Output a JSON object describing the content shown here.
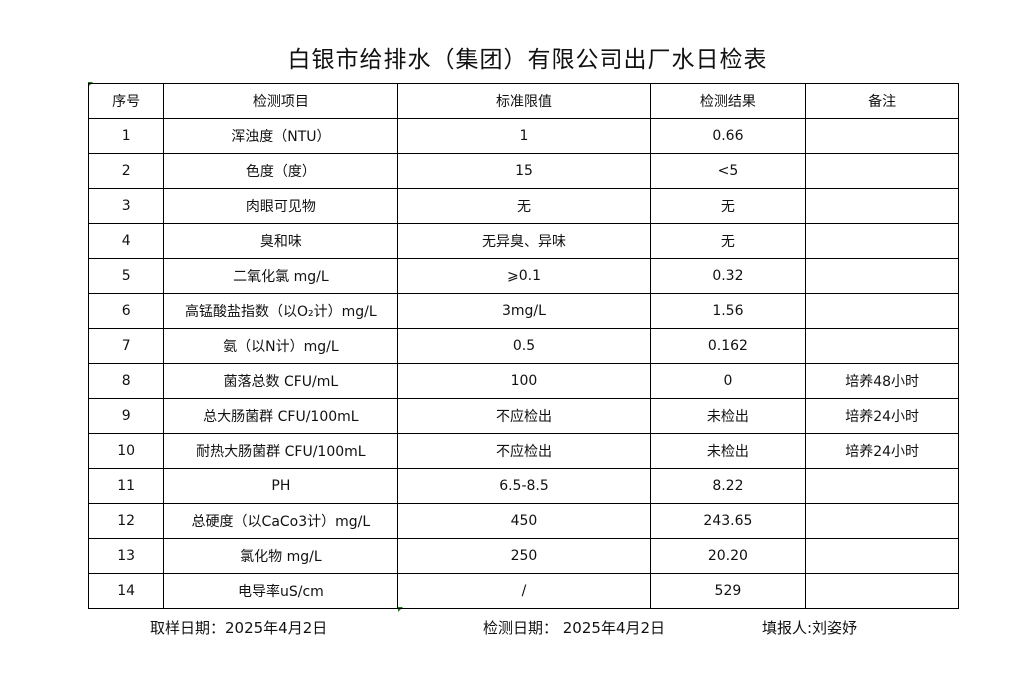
{
  "title": "白银市给排水（集团）有限公司出厂水日检表",
  "headers": [
    "序号",
    "检测项目",
    "标准限值",
    "检测结果",
    "备注"
  ],
  "rows": [
    [
      "1",
      "浑浊度（NTU）",
      "1",
      "0.66",
      ""
    ],
    [
      "2",
      "色度（度）",
      "15",
      "<5",
      ""
    ],
    [
      "3",
      "肉眼可见物",
      "无",
      "无",
      ""
    ],
    [
      "4",
      "臭和味",
      "无异臭、异味",
      "无",
      ""
    ],
    [
      "5",
      "二氧化氯 mg/L",
      "⩾0.1",
      "0.32",
      ""
    ],
    [
      "6",
      "高锰酸盐指数（以O₂计）mg/L",
      "3mg/L",
      "1.56",
      ""
    ],
    [
      "7",
      "氨（以N计）mg/L",
      "0.5",
      "0.162",
      ""
    ],
    [
      "8",
      "菌落总数 CFU/mL",
      "100",
      "0",
      "培养48小时"
    ],
    [
      "9",
      "总大肠菌群 CFU/100mL",
      "不应检出",
      "未检出",
      "培养24小时"
    ],
    [
      "10",
      "耐热大肠菌群 CFU/100mL",
      "不应检出",
      "未检出",
      "培养24小时"
    ],
    [
      "11",
      "PH",
      "6.5-8.5",
      "8.22",
      ""
    ],
    [
      "12",
      "总硬度（以CaCo3计）mg/L",
      "450",
      "243.65",
      ""
    ],
    [
      "13",
      "氯化物 mg/L",
      "250",
      "20.20",
      ""
    ],
    [
      "14",
      "电导率uS/cm",
      "/",
      "529",
      ""
    ]
  ],
  "footer": {
    "sampling_date": "取样日期：2025年4月2日",
    "test_date": "检测日期：  2025年4月2日",
    "reporter": "填报人:刘姿妤"
  }
}
